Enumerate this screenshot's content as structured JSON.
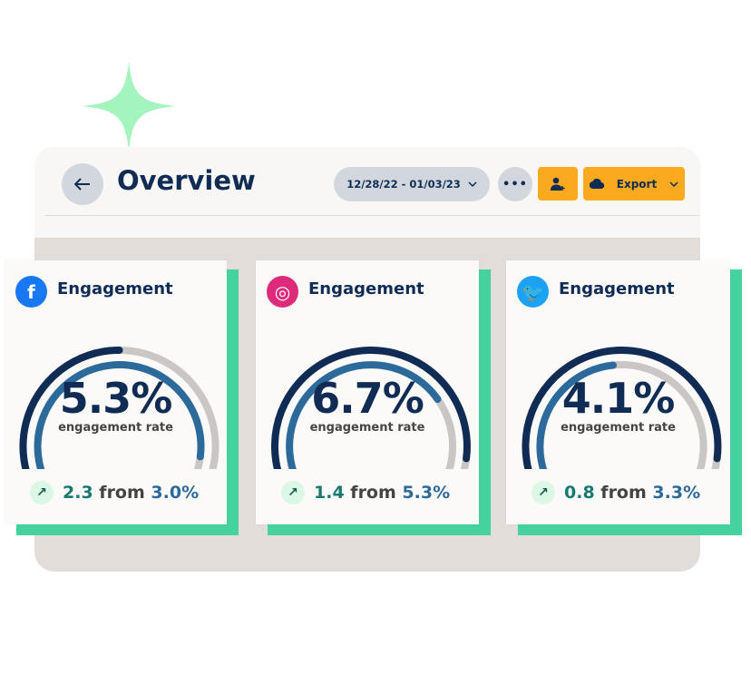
{
  "header": {
    "title": "Overview",
    "date_range": "12/28/22 - 01/03/23",
    "export_label": "Export",
    "more_label": "•••"
  },
  "icons": {
    "back": "arrow-left-icon",
    "add_user": "user-plus-icon",
    "export": "cloud-icon",
    "chevron": "chevron-down-icon"
  },
  "colors": {
    "accent": "#fba91e",
    "green": "#45d29e",
    "navy": "#102c54",
    "blue": "#2b6a9b",
    "track": "#c9c6c4"
  },
  "cards": [
    {
      "network": "facebook",
      "title": "Engagement",
      "value": "5.3%",
      "subtitle": "engagement rate",
      "delta": "2.3",
      "from_word": "from",
      "previous": "3.0%",
      "outer_fill": 0.5,
      "inner_fill": 0.82,
      "logo_color": "#1877f2",
      "logo_glyph": "f"
    },
    {
      "network": "instagram",
      "title": "Engagement",
      "value": "6.7%",
      "subtitle": "engagement rate",
      "delta": "1.4",
      "from_word": "from",
      "previous": "5.3%",
      "outer_fill": 0.82,
      "inner_fill": 0.68,
      "logo_color": "#dd2a7b",
      "logo_glyph": "◎"
    },
    {
      "network": "twitter",
      "title": "Engagement",
      "value": "4.1%",
      "subtitle": "engagement rate",
      "delta": "0.8",
      "from_word": "from",
      "previous": "3.3%",
      "outer_fill": 0.82,
      "inner_fill": 0.48,
      "logo_color": "#1da1f2",
      "logo_glyph": "🐦"
    }
  ]
}
